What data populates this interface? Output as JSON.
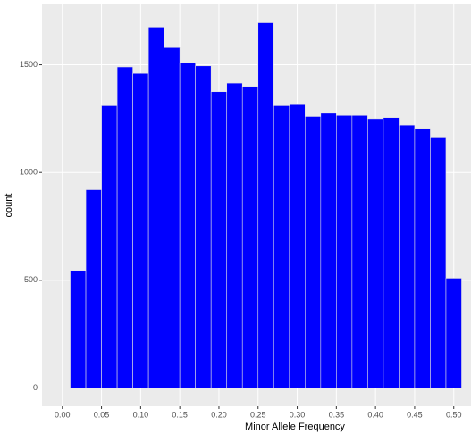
{
  "chart_data": {
    "type": "histogram",
    "x_label": "Minor Allele Frequency",
    "y_label": "count",
    "bins": [
      0.01,
      0.03,
      0.05,
      0.07,
      0.09,
      0.11,
      0.13,
      0.15,
      0.17,
      0.19,
      0.21,
      0.23,
      0.25,
      0.27,
      0.29,
      0.31,
      0.33,
      0.35,
      0.37,
      0.39,
      0.41,
      0.43,
      0.45,
      0.47,
      0.49,
      0.51
    ],
    "counts": [
      545,
      920,
      1310,
      1490,
      1460,
      1675,
      1580,
      1510,
      1495,
      1375,
      1415,
      1400,
      1695,
      1310,
      1315,
      1260,
      1275,
      1265,
      1265,
      1250,
      1255,
      1220,
      1205,
      1165,
      510
    ],
    "color": "#0000ff",
    "xlim": [
      -0.026,
      0.522
    ],
    "ylim": [
      -85,
      1780
    ],
    "xticks": [
      {
        "value": 0,
        "label": "0.00"
      },
      {
        "value": 0.05,
        "label": "0.05"
      },
      {
        "value": 0.1,
        "label": "0.10"
      },
      {
        "value": 0.15,
        "label": "0.15"
      },
      {
        "value": 0.2,
        "label": "0.20"
      },
      {
        "value": 0.25,
        "label": "0.25"
      },
      {
        "value": 0.3,
        "label": "0.30"
      },
      {
        "value": 0.35,
        "label": "0.35"
      },
      {
        "value": 0.4,
        "label": "0.40"
      },
      {
        "value": 0.45,
        "label": "0.45"
      },
      {
        "value": 0.5,
        "label": "0.50"
      }
    ],
    "yticks": [
      0,
      500,
      1000,
      1500
    ],
    "grid": true
  }
}
